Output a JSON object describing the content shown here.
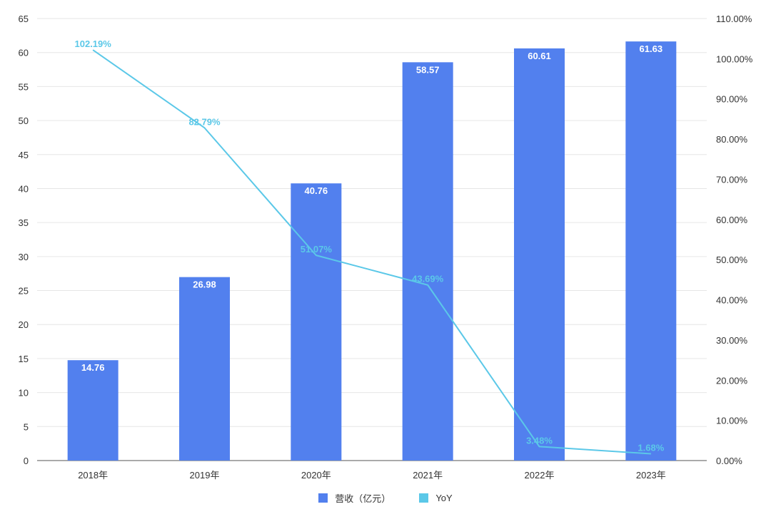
{
  "chart_data": {
    "type": "bar",
    "categories": [
      "2018年",
      "2019年",
      "2020年",
      "2021年",
      "2022年",
      "2023年"
    ],
    "series": [
      {
        "name": "营收（亿元）",
        "type": "bar",
        "axis": "left",
        "values": [
          14.76,
          26.98,
          40.76,
          58.57,
          60.61,
          61.63
        ],
        "labels": [
          "14.76",
          "26.98",
          "40.76",
          "58.57",
          "60.61",
          "61.63"
        ],
        "color": "#5280EE"
      },
      {
        "name": "YoY",
        "type": "line",
        "axis": "right",
        "values": [
          102.19,
          82.79,
          51.07,
          43.69,
          3.48,
          1.68
        ],
        "labels": [
          "102.19%",
          "82.79%",
          "51.07%",
          "43.69%",
          "3.48%",
          "1.68%"
        ],
        "color": "#5BC8E8"
      }
    ],
    "y_left": {
      "ylim": [
        0,
        65
      ],
      "ticks": [
        "0",
        "5",
        "10",
        "15",
        "20",
        "25",
        "30",
        "35",
        "40",
        "45",
        "50",
        "55",
        "60",
        "65"
      ]
    },
    "y_right": {
      "ylim": [
        0,
        110
      ],
      "ticks": [
        "0.00%",
        "10.00%",
        "20.00%",
        "30.00%",
        "40.00%",
        "50.00%",
        "60.00%",
        "70.00%",
        "80.00%",
        "90.00%",
        "100.00%",
        "110.00%"
      ]
    },
    "grid": true,
    "legend": "bottom-center"
  },
  "legend": {
    "bar_label": "营收（亿元）",
    "line_label": "YoY"
  }
}
